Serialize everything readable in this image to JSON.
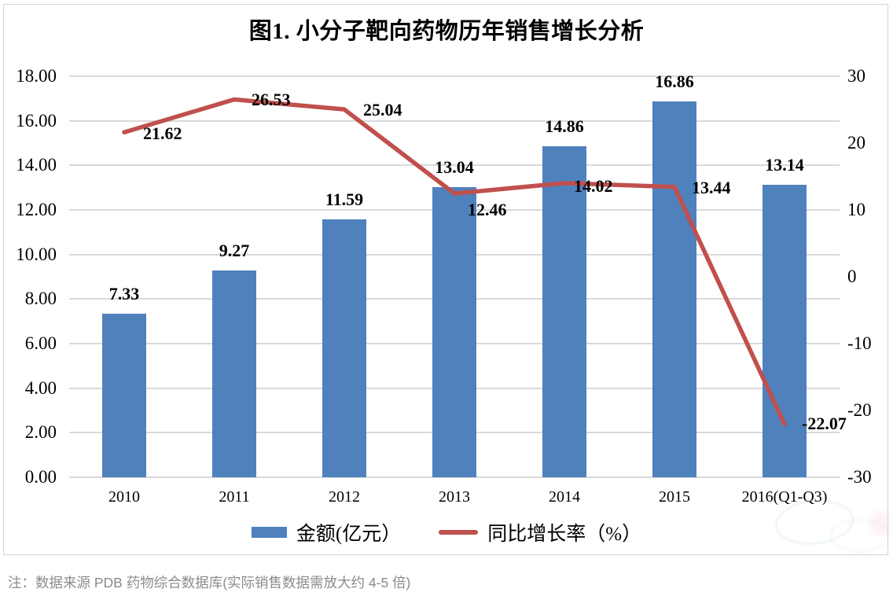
{
  "note": "注：数据来源 PDB 药物综合数据库(实际销售数据需放大约 4-5 倍)",
  "colors": {
    "bar": "#4f81bd",
    "line": "#c0504d",
    "grid": "#d9d9d9",
    "frame_border": "#d4d4d4",
    "note_text": "#8b8b8b"
  },
  "chart_data": {
    "type": "combo",
    "title": "图1. 小分子靶向药物历年销售增长分析",
    "categories": [
      "2010",
      "2011",
      "2012",
      "2013",
      "2014",
      "2015",
      "2016(Q1-Q3)"
    ],
    "series": [
      {
        "name": "金额(亿元）",
        "type": "bar",
        "axis": "left",
        "color": "#4f81bd",
        "values": [
          7.33,
          9.27,
          11.59,
          13.04,
          14.86,
          16.86,
          13.14
        ],
        "labels": [
          "7.33",
          "9.27",
          "11.59",
          "13.04",
          "14.86",
          "16.86",
          "13.14"
        ]
      },
      {
        "name": "同比增长率（%）",
        "type": "line",
        "axis": "right",
        "color": "#c0504d",
        "values": [
          21.62,
          26.53,
          25.04,
          12.46,
          14.02,
          13.44,
          -22.07
        ],
        "labels": [
          "21.62",
          "26.53",
          "25.04",
          "12.46",
          "14.02",
          "13.44",
          "-22.07"
        ]
      }
    ],
    "left_axis": {
      "min": 0,
      "max": 18,
      "step": 2,
      "tick_labels": [
        "0.00",
        "2.00",
        "4.00",
        "6.00",
        "8.00",
        "10.00",
        "12.00",
        "14.00",
        "16.00",
        "18.00"
      ]
    },
    "right_axis": {
      "min": -30,
      "max": 30,
      "step": 10,
      "tick_labels": [
        "-30",
        "-20",
        "-10",
        "0",
        "10",
        "20",
        "30"
      ]
    },
    "grid": true,
    "legend_position": "bottom"
  }
}
